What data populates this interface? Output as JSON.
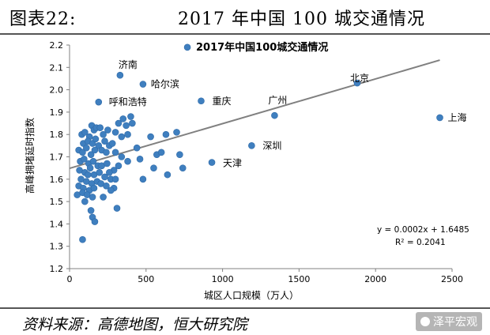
{
  "figure": {
    "label": "图表22:",
    "title": "2017 年中国 100 城交通情况",
    "source": "资料来源：高德地图，恒大研究院",
    "watermark": "泽平宏观"
  },
  "chart_data": {
    "type": "scatter",
    "title": "2017年中国100城交通情况",
    "xlabel": "城区人口规模（万人）",
    "ylabel": "高峰拥堵延时指数",
    "xlim": [
      0,
      2500
    ],
    "ylim": [
      1.2,
      2.2
    ],
    "xticks": [
      0,
      500,
      1000,
      1500,
      2000,
      2500
    ],
    "yticks": [
      1.2,
      1.3,
      1.4,
      1.5,
      1.6,
      1.7,
      1.8,
      1.9,
      2.0,
      2.1,
      2.2
    ],
    "grid": false,
    "marker_color": "#3f7fbf",
    "trendline_color": "#808080",
    "trendline": {
      "slope": 0.0002,
      "intercept": 1.6485,
      "x_range": [
        0,
        2420
      ]
    },
    "equation": "y = 0.0002x + 1.6485",
    "r_squared": "R² = 0.2041",
    "labeled_points": [
      {
        "name": "北京",
        "x": 1880,
        "y": 2.03
      },
      {
        "name": "上海",
        "x": 2420,
        "y": 1.875
      },
      {
        "name": "广州",
        "x": 1340,
        "y": 1.885
      },
      {
        "name": "重庆",
        "x": 860,
        "y": 1.95
      },
      {
        "name": "济南",
        "x": 330,
        "y": 2.065
      },
      {
        "name": "哈尔滨",
        "x": 480,
        "y": 2.025
      },
      {
        "name": "呼和浩特",
        "x": 190,
        "y": 1.945
      },
      {
        "name": "深圳",
        "x": 1190,
        "y": 1.75
      },
      {
        "name": "天津",
        "x": 930,
        "y": 1.675
      }
    ],
    "points": [
      {
        "x": 770,
        "y": 2.19
      },
      {
        "x": 80,
        "y": 1.8
      },
      {
        "x": 100,
        "y": 1.81
      },
      {
        "x": 130,
        "y": 1.79
      },
      {
        "x": 145,
        "y": 1.84
      },
      {
        "x": 160,
        "y": 1.82
      },
      {
        "x": 175,
        "y": 1.83
      },
      {
        "x": 200,
        "y": 1.83
      },
      {
        "x": 220,
        "y": 1.8
      },
      {
        "x": 250,
        "y": 1.82
      },
      {
        "x": 90,
        "y": 1.76
      },
      {
        "x": 120,
        "y": 1.77
      },
      {
        "x": 150,
        "y": 1.76
      },
      {
        "x": 170,
        "y": 1.78
      },
      {
        "x": 190,
        "y": 1.75
      },
      {
        "x": 230,
        "y": 1.77
      },
      {
        "x": 260,
        "y": 1.75
      },
      {
        "x": 280,
        "y": 1.76
      },
      {
        "x": 60,
        "y": 1.73
      },
      {
        "x": 85,
        "y": 1.72
      },
      {
        "x": 110,
        "y": 1.74
      },
      {
        "x": 140,
        "y": 1.71
      },
      {
        "x": 165,
        "y": 1.73
      },
      {
        "x": 210,
        "y": 1.73
      },
      {
        "x": 240,
        "y": 1.72
      },
      {
        "x": 70,
        "y": 1.68
      },
      {
        "x": 95,
        "y": 1.69
      },
      {
        "x": 125,
        "y": 1.67
      },
      {
        "x": 155,
        "y": 1.68
      },
      {
        "x": 185,
        "y": 1.66
      },
      {
        "x": 210,
        "y": 1.66
      },
      {
        "x": 245,
        "y": 1.67
      },
      {
        "x": 65,
        "y": 1.64
      },
      {
        "x": 100,
        "y": 1.63
      },
      {
        "x": 135,
        "y": 1.65
      },
      {
        "x": 160,
        "y": 1.62
      },
      {
        "x": 195,
        "y": 1.63
      },
      {
        "x": 230,
        "y": 1.61
      },
      {
        "x": 270,
        "y": 1.6
      },
      {
        "x": 75,
        "y": 1.6
      },
      {
        "x": 110,
        "y": 1.59
      },
      {
        "x": 145,
        "y": 1.58
      },
      {
        "x": 180,
        "y": 1.59
      },
      {
        "x": 205,
        "y": 1.58
      },
      {
        "x": 60,
        "y": 1.57
      },
      {
        "x": 90,
        "y": 1.56
      },
      {
        "x": 130,
        "y": 1.55
      },
      {
        "x": 160,
        "y": 1.56
      },
      {
        "x": 50,
        "y": 1.53
      },
      {
        "x": 85,
        "y": 1.54
      },
      {
        "x": 115,
        "y": 1.53
      },
      {
        "x": 150,
        "y": 1.52
      },
      {
        "x": 100,
        "y": 1.5
      },
      {
        "x": 140,
        "y": 1.46
      },
      {
        "x": 150,
        "y": 1.43
      },
      {
        "x": 165,
        "y": 1.41
      },
      {
        "x": 310,
        "y": 1.47
      },
      {
        "x": 85,
        "y": 1.33
      },
      {
        "x": 320,
        "y": 1.85
      },
      {
        "x": 350,
        "y": 1.87
      },
      {
        "x": 370,
        "y": 1.84
      },
      {
        "x": 400,
        "y": 1.88
      },
      {
        "x": 410,
        "y": 1.85
      },
      {
        "x": 300,
        "y": 1.81
      },
      {
        "x": 340,
        "y": 1.79
      },
      {
        "x": 380,
        "y": 1.8
      },
      {
        "x": 440,
        "y": 1.74
      },
      {
        "x": 300,
        "y": 1.72
      },
      {
        "x": 340,
        "y": 1.7
      },
      {
        "x": 380,
        "y": 1.68
      },
      {
        "x": 320,
        "y": 1.66
      },
      {
        "x": 290,
        "y": 1.64
      },
      {
        "x": 260,
        "y": 1.63
      },
      {
        "x": 290,
        "y": 1.56
      },
      {
        "x": 460,
        "y": 1.69
      },
      {
        "x": 530,
        "y": 1.79
      },
      {
        "x": 570,
        "y": 1.71
      },
      {
        "x": 600,
        "y": 1.72
      },
      {
        "x": 630,
        "y": 1.8
      },
      {
        "x": 700,
        "y": 1.81
      },
      {
        "x": 720,
        "y": 1.71
      },
      {
        "x": 740,
        "y": 1.65
      },
      {
        "x": 640,
        "y": 1.62
      },
      {
        "x": 550,
        "y": 1.65
      },
      {
        "x": 480,
        "y": 1.6
      },
      {
        "x": 220,
        "y": 1.52
      },
      {
        "x": 240,
        "y": 1.57
      },
      {
        "x": 270,
        "y": 1.55
      },
      {
        "x": 300,
        "y": 1.6
      },
      {
        "x": 120,
        "y": 1.62
      }
    ]
  }
}
